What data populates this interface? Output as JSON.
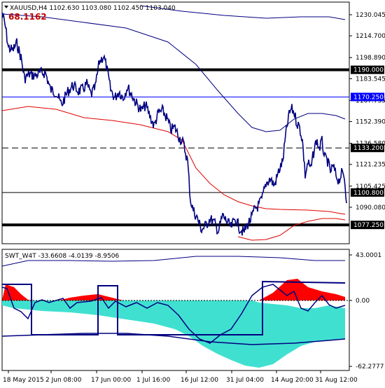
{
  "main_panel": {
    "symbol_info": "XAUUSD,H4  1102.630 1103.080 1102.450 1103.040",
    "indicator_value": "68.1162",
    "axis_labels": [
      {
        "value": 1230.045,
        "text": "1230.045"
      },
      {
        "value": 1214.7,
        "text": "1214.700"
      },
      {
        "value": 1198.89,
        "text": "1198.890"
      },
      {
        "value": 1183.545,
        "text": "1183.545"
      },
      {
        "value": 1167.735,
        "text": "1167.735"
      },
      {
        "value": 1152.39,
        "text": "1152.390"
      },
      {
        "value": 1136.58,
        "text": "1136.580"
      },
      {
        "value": 1121.235,
        "text": "1121.235"
      },
      {
        "value": 1105.425,
        "text": "1105.425"
      },
      {
        "value": 1090.08,
        "text": "1090.080"
      }
    ],
    "levels": [
      {
        "value": 1190.0,
        "text": "1190.000",
        "style": "thick",
        "color": "#000000"
      },
      {
        "value": 1170.25,
        "text": "1170.250",
        "style": "thin",
        "color": "#0000ff"
      },
      {
        "value": 1133.2,
        "text": "1133.200",
        "style": "dashed",
        "color": "#000000"
      },
      {
        "value": 1100.8,
        "text": "1100.800",
        "style": "thin",
        "color": "#000000"
      },
      {
        "value": 1077.25,
        "text": "1077.250",
        "style": "thick",
        "color": "#000000"
      }
    ]
  },
  "sub_panel": {
    "indicator_info": "SWT_W4T -33.6608 -4.0139 -8.9506",
    "axis_labels": [
      {
        "value": 43.0001,
        "text": "43.0001"
      },
      {
        "value": 0.0,
        "text": "0.00"
      },
      {
        "value": -62.2777,
        "text": "-62.2777"
      }
    ]
  },
  "time_axis": [
    "18 May 2015",
    "2 Jun 08:00",
    "17 Jun 00:00",
    "1 Jul 16:00",
    "16 Jul 12:00",
    "31 Jul 04:00",
    "14 Aug 20:00",
    "31 Aug 12:00"
  ],
  "colors": {
    "price_line": "#000080",
    "ma_red": "#e00000",
    "ma_blue": "#000080",
    "hist_red": "#ff0000",
    "hist_cyan": "#40e0d0",
    "level_highlight": "#0000ff"
  }
}
